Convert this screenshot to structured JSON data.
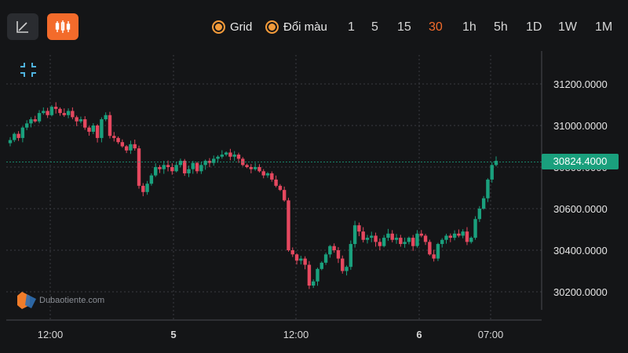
{
  "toolbar": {
    "line_icon": "line-chart-icon",
    "candle_icon": "candlestick-icon",
    "grid_label": "Grid",
    "color_label": "Đổi màu",
    "timeframes": [
      "1",
      "5",
      "15",
      "30",
      "1h",
      "5h",
      "1D",
      "1W",
      "1M"
    ],
    "active_timeframe": "30",
    "fit_icon": "collapse-icon"
  },
  "watermark": "Dubaotiente.com",
  "colors": {
    "up": "#1aa07d",
    "down": "#e5485f",
    "accent": "#f36b2b",
    "background": "#141517"
  },
  "chart_data": {
    "type": "candlestick",
    "y_ticks": [
      "31200.0000",
      "31000.0000",
      "30800.0000",
      "30600.0000",
      "30400.0000",
      "30200.0000"
    ],
    "y_tick_values": [
      31200,
      31000,
      30800,
      30600,
      30400,
      30200
    ],
    "x_ticks": [
      "12:00",
      "5",
      "12:00",
      "6",
      "07:00"
    ],
    "ylim": [
      30150,
      31240
    ],
    "grid": true,
    "last_price": "30824.4000",
    "candles_close": [
      30930,
      30960,
      30940,
      30990,
      31010,
      31030,
      31020,
      31060,
      31070,
      31050,
      31090,
      31080,
      31060,
      31050,
      31070,
      31040,
      31020,
      31030,
      30990,
      30970,
      31000,
      30940,
      31030,
      31050,
      30950,
      30940,
      30920,
      30900,
      30880,
      30910,
      30890,
      30710,
      30680,
      30720,
      30760,
      30800,
      30790,
      30810,
      30800,
      30780,
      30810,
      30830,
      30770,
      30790,
      30820,
      30780,
      30810,
      30830,
      30820,
      30840,
      30850,
      30860,
      30870,
      30850,
      30860,
      30840,
      30810,
      30800,
      30790,
      30800,
      30780,
      30760,
      30770,
      30740,
      30710,
      30690,
      30640,
      30400,
      30380,
      30350,
      30360,
      30330,
      30230,
      30250,
      30310,
      30340,
      30380,
      30420,
      30400,
      30360,
      30300,
      30320,
      30430,
      30520,
      30490,
      30450,
      30460,
      30470,
      30440,
      30420,
      30460,
      30480,
      30450,
      30460,
      30430,
      30440,
      30460,
      30420,
      30480,
      30470,
      30440,
      30380,
      30360,
      30430,
      30450,
      30470,
      30460,
      30480,
      30470,
      30490,
      30440,
      30460,
      30550,
      30600,
      30650,
      30740,
      30810,
      30830
    ]
  }
}
